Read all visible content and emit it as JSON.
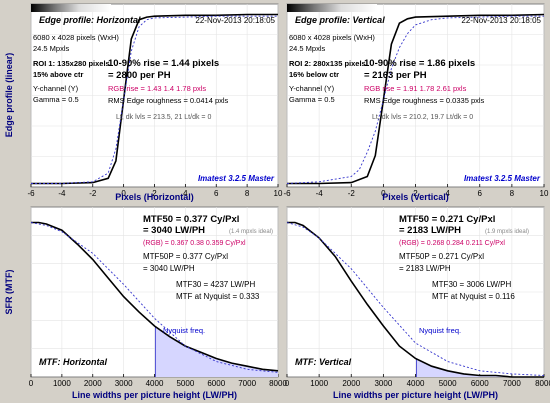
{
  "colors": {
    "background": "#d4d0c8",
    "panel": "#ffffff",
    "curve": "#000000",
    "ideal": "#3333cc",
    "rgb": "#cc0066",
    "nyquist_fill": "#d6d6ff",
    "axis_label": "#000080",
    "watermark": "#0000cc"
  },
  "panels": {
    "edge_h": {
      "title": "Edge profile: Horizontal",
      "date": "22-Nov-2013 20:18:05",
      "info1": "6080 x 4028 pixels (WxH)",
      "info2": "24.5 Mpxls",
      "roi1": "ROI 1:  135x280 pixels",
      "roi2": "15% above ctr",
      "channel": "Y-channel  (Y)",
      "gamma": "Gamma = 0.5",
      "rise1": "10-90% rise = 1.44 pixels",
      "rise2": "= 2800 per PH",
      "rgb": "RGB rise = 1.43  1.4  1.78 pxls",
      "rms": "RMS Edge roughness = 0.0414 pxls",
      "levels": "Lt, dk lvls = 213.5, 21    Lt/dk = 0",
      "watermark": "Imatest 3.2.5 Master",
      "xlabel": "Pixels (Horizontal)"
    },
    "edge_v": {
      "title": "Edge profile: Vertical",
      "date": "22-Nov-2013 20:18:05",
      "info1": "6080 x 4028 pixels (WxH)",
      "info2": "24.5 Mpxls",
      "roi1": "ROI 2:  280x135 pixels",
      "roi2": "16% below ctr",
      "channel": "Y-channel  (Y)",
      "gamma": "Gamma = 0.5",
      "rise1": "10-90% rise = 1.86 pixels",
      "rise2": "= 2163 per PH",
      "rgb": "RGB rise = 1.91  1.78  2.61 pxls",
      "rms": "RMS Edge roughness = 0.0335 pxls",
      "levels": "Lt, dk lvls = 210.2, 19.7    Lt/dk = 0",
      "watermark": "Imatest 3.2.5 Master",
      "xlabel": "Pixels (Vertical)"
    },
    "mtf_h": {
      "mtf50_1": "MTF50 = 0.377 Cy/Pxl",
      "mtf50_2": "= 3040 LW/PH",
      "ideal": "(1.4 mpxls ideal)",
      "rgb": "(RGB) = 0.367  0.38  0.359 Cy/Pxl",
      "mtf50p_1": "MTF50P = 0.377 Cy/Pxl",
      "mtf50p_2": "= 3040 LW/PH",
      "mtf30": "MTF30 = 4237 LW/PH",
      "nyq": "MTF at Nyquist = 0.333",
      "nyq_label": "Nyquist freq.",
      "panel_label": "MTF: Horizontal",
      "xlabel": "Line widths per picture height (LW/PH)"
    },
    "mtf_v": {
      "mtf50_1": "MTF50 = 0.271 Cy/Pxl",
      "mtf50_2": "= 2183 LW/PH",
      "ideal": "(1.9 mpxls ideal)",
      "rgb": "(RGB) = 0.268  0.284  0.211 Cy/Pxl",
      "mtf50p_1": "MTF50P = 0.271 Cy/Pxl",
      "mtf50p_2": "= 2183 LW/PH",
      "mtf30": "MTF30 = 3006 LW/PH",
      "nyq": "MTF at Nyquist = 0.116",
      "nyq_label": "Nyquist freq.",
      "panel_label": "MTF: Vertical",
      "xlabel": "Line widths per picture height (LW/PH)"
    },
    "ylabel_top": "Edge profile (linear)",
    "ylabel_bottom": "SFR (MTF)"
  },
  "chart_data": [
    {
      "type": "line",
      "id": "edge_h",
      "xlim": [
        -6,
        10
      ],
      "ylim": [
        0,
        1.05
      ],
      "xticks": [
        "-6",
        "-4",
        "-2",
        "0",
        "2",
        "4",
        "6",
        "8",
        "10"
      ],
      "series": [
        {
          "role": "measured",
          "x": [
            -6,
            -4,
            -2,
            -1,
            -0.5,
            0,
            0.5,
            1,
            1.5,
            2,
            4,
            6,
            8,
            10
          ],
          "y": [
            0.02,
            0.02,
            0.025,
            0.05,
            0.15,
            0.5,
            0.85,
            0.96,
            0.975,
            0.98,
            0.985,
            0.985,
            0.99,
            0.99
          ]
        },
        {
          "role": "ideal",
          "x": [
            -6,
            -4,
            -2,
            -1,
            -0.5,
            0,
            0.5,
            1,
            1.5,
            2,
            4,
            6,
            8,
            10
          ],
          "y": [
            0.02,
            0.02,
            0.03,
            0.08,
            0.22,
            0.5,
            0.78,
            0.92,
            0.96,
            0.97,
            0.975,
            0.98,
            0.98,
            0.98
          ]
        }
      ]
    },
    {
      "type": "line",
      "id": "edge_v",
      "xlim": [
        -6,
        10
      ],
      "ylim": [
        0,
        1.05
      ],
      "xticks": [
        "-6",
        "-4",
        "-2",
        "0",
        "2",
        "4",
        "6",
        "8",
        "10"
      ],
      "series": [
        {
          "role": "measured",
          "x": [
            -6,
            -4,
            -2,
            -1,
            -0.5,
            0,
            0.5,
            1,
            1.5,
            2,
            4,
            6,
            8,
            10
          ],
          "y": [
            0.02,
            0.02,
            0.025,
            0.06,
            0.18,
            0.5,
            0.82,
            0.94,
            0.965,
            0.975,
            0.98,
            0.985,
            0.985,
            0.99
          ]
        },
        {
          "role": "ideal",
          "x": [
            -6,
            -4,
            -2,
            -1.5,
            -1,
            -0.5,
            0,
            0.5,
            1,
            1.5,
            2,
            3,
            4,
            6,
            8,
            10
          ],
          "y": [
            0.02,
            0.03,
            0.06,
            0.1,
            0.2,
            0.32,
            0.5,
            0.68,
            0.8,
            0.88,
            0.93,
            0.96,
            0.97,
            0.975,
            0.98,
            0.98
          ]
        }
      ]
    },
    {
      "type": "line",
      "id": "mtf_h",
      "xlim": [
        0,
        8000
      ],
      "ylim": [
        0,
        1.1
      ],
      "xticks": [
        "0",
        "1000",
        "2000",
        "3000",
        "4000",
        "5000",
        "6000",
        "7000",
        "8000"
      ],
      "nyquist_x": 4028,
      "series": [
        {
          "role": "measured",
          "x": [
            0,
            250,
            500,
            1000,
            1500,
            2000,
            2500,
            3000,
            3500,
            4000,
            4500,
            5000,
            5500,
            6000,
            6500,
            7000,
            7500,
            8000
          ],
          "y": [
            1.0,
            1.0,
            0.99,
            0.95,
            0.86,
            0.76,
            0.64,
            0.52,
            0.42,
            0.33,
            0.26,
            0.2,
            0.16,
            0.12,
            0.09,
            0.07,
            0.05,
            0.04
          ]
        },
        {
          "role": "ideal",
          "x": [
            0,
            500,
            1000,
            2000,
            3000,
            4000,
            5000,
            6000,
            7000,
            8000
          ],
          "y": [
            1.0,
            0.98,
            0.94,
            0.8,
            0.6,
            0.38,
            0.2,
            0.1,
            0.05,
            0.03
          ]
        }
      ]
    },
    {
      "type": "line",
      "id": "mtf_v",
      "xlim": [
        0,
        8000
      ],
      "ylim": [
        0,
        1.1
      ],
      "xticks": [
        "0",
        "1000",
        "2000",
        "3000",
        "4000",
        "5000",
        "6000",
        "7000",
        "8000"
      ],
      "nyquist_x": 4028,
      "series": [
        {
          "role": "measured",
          "x": [
            0,
            250,
            500,
            1000,
            1500,
            2000,
            2500,
            3000,
            3500,
            4000,
            4500,
            5000,
            5500,
            6000,
            6500,
            7000,
            7500,
            8000
          ],
          "y": [
            1.0,
            1.0,
            0.98,
            0.9,
            0.78,
            0.62,
            0.47,
            0.33,
            0.2,
            0.12,
            0.07,
            0.04,
            0.02,
            0.01,
            0.01,
            0.0,
            0.0,
            0.0
          ]
        },
        {
          "role": "ideal",
          "x": [
            0,
            500,
            1000,
            2000,
            3000,
            4000,
            5000,
            6000,
            7000,
            8000
          ],
          "y": [
            1.0,
            0.97,
            0.9,
            0.7,
            0.45,
            0.22,
            0.1,
            0.04,
            0.02,
            0.01
          ]
        }
      ]
    }
  ]
}
